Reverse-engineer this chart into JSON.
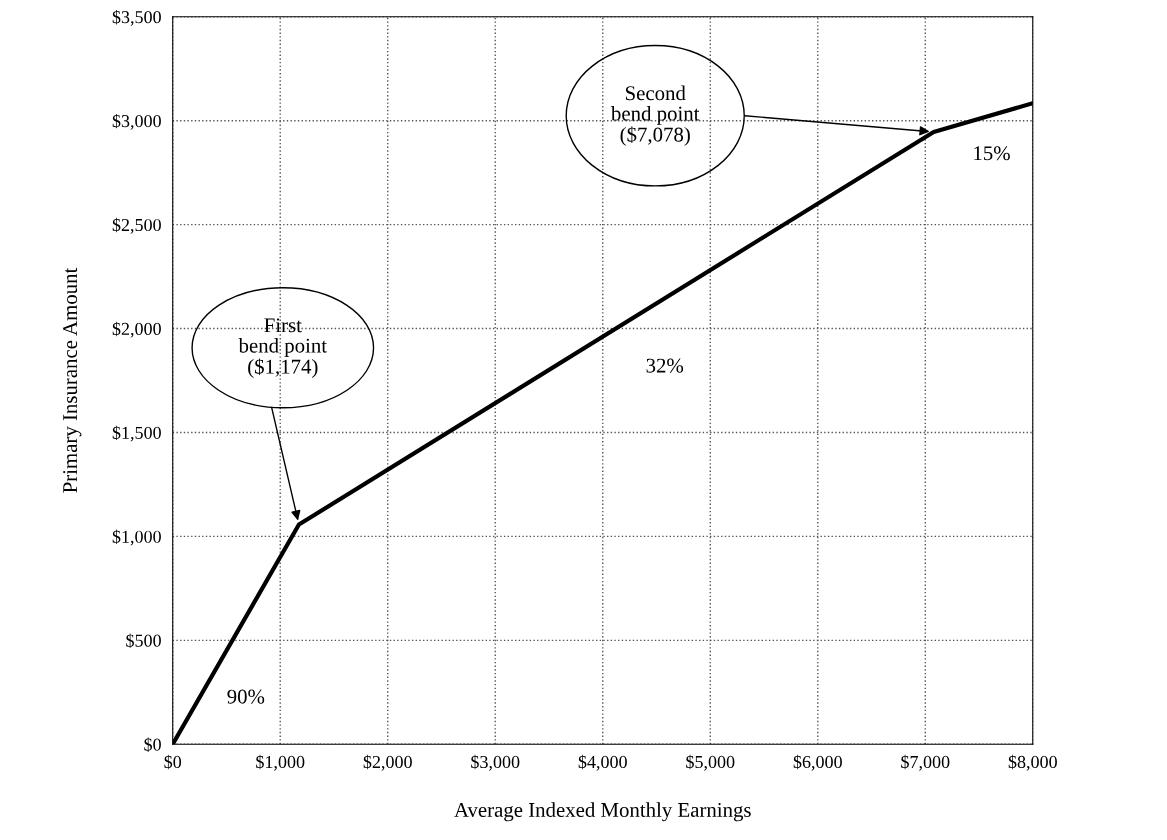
{
  "chart_data": {
    "type": "line",
    "xlabel": "Average Indexed Monthly Earnings",
    "ylabel": "Primary Insurance Amount",
    "x": [
      0,
      1174,
      7078,
      8000
    ],
    "series": [
      {
        "color": "#000000",
        "values": [
          0,
          1057,
          2946,
          3084
        ]
      }
    ],
    "xlim": [
      0,
      8000
    ],
    "xticks": [
      {
        "value": 0,
        "label": "$0"
      },
      {
        "value": 1000,
        "label": "$1,000"
      },
      {
        "value": 2000,
        "label": "$2,000"
      },
      {
        "value": 3000,
        "label": "$3,000"
      },
      {
        "value": 4000,
        "label": "$4,000"
      },
      {
        "value": 5000,
        "label": "$5,000"
      },
      {
        "value": 6000,
        "label": "$6,000"
      },
      {
        "value": 7000,
        "label": "$7,000"
      },
      {
        "value": 8000,
        "label": "$8,000"
      }
    ],
    "ylim": [
      0,
      3500
    ],
    "yticks": [
      {
        "value": 0,
        "label": "$0"
      },
      {
        "value": 500,
        "label": "$500"
      },
      {
        "value": 1000,
        "label": "$1,000"
      },
      {
        "value": 1500,
        "label": "$1,500"
      },
      {
        "value": 2000,
        "label": "$2,000"
      },
      {
        "value": 2500,
        "label": "$2,500"
      },
      {
        "value": 3000,
        "label": "$3,000"
      },
      {
        "value": 3500,
        "label": "$3,500"
      }
    ],
    "grid": true,
    "marker": "none",
    "line_style": "solid",
    "annotations": [
      "First\nbend point\n($1,174)",
      "Second\nbend point\n($7,078)",
      "90%",
      "32%",
      "15%"
    ]
  }
}
